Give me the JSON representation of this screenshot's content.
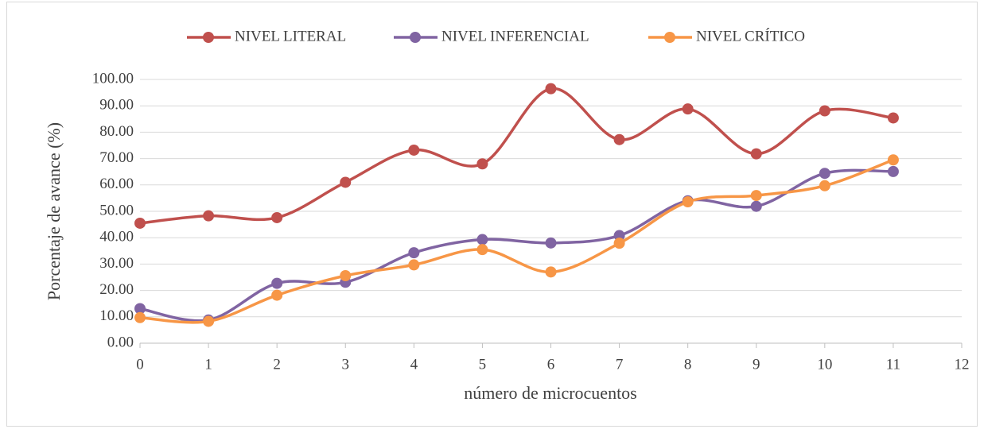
{
  "chart_data": {
    "type": "line",
    "smooth": true,
    "x": [
      0,
      1,
      2,
      3,
      4,
      5,
      6,
      7,
      8,
      9,
      10,
      11
    ],
    "series": [
      {
        "name": "NIVEL LITERAL",
        "color": "#c0504d",
        "values": [
          45.5,
          48.3,
          47.6,
          61.0,
          73.2,
          68.0,
          96.5,
          77.2,
          88.8,
          71.8,
          88.1,
          85.4
        ]
      },
      {
        "name": "NIVEL INFERENCIAL",
        "color": "#8064a2",
        "values": [
          13.1,
          8.8,
          22.7,
          23.1,
          34.3,
          39.3,
          38.0,
          40.8,
          54.0,
          51.9,
          64.4,
          65.1
        ]
      },
      {
        "name": "NIVEL CRÍTICO",
        "color": "#f79646",
        "values": [
          9.7,
          8.3,
          18.2,
          25.6,
          29.7,
          35.5,
          27.0,
          37.9,
          53.6,
          56.0,
          59.7,
          69.5
        ]
      }
    ],
    "xlabel": "número de microcuentos",
    "ylabel": "Porcentaje de avance (%)",
    "xlim": [
      0,
      12
    ],
    "xticks": [
      0,
      1,
      2,
      3,
      4,
      5,
      6,
      7,
      8,
      9,
      10,
      11,
      12
    ],
    "ylim": [
      0,
      100
    ],
    "yticks": [
      {
        "value": 0,
        "label": "0.00"
      },
      {
        "value": 10,
        "label": "10.00"
      },
      {
        "value": 20,
        "label": "20.00"
      },
      {
        "value": 30,
        "label": "30.00"
      },
      {
        "value": 40,
        "label": "40.00"
      },
      {
        "value": 50,
        "label": "50.00"
      },
      {
        "value": 60,
        "label": "60.00"
      },
      {
        "value": 70,
        "label": "70.00"
      },
      {
        "value": 80,
        "label": "80.00"
      },
      {
        "value": 90,
        "label": "90.00"
      },
      {
        "value": 100,
        "label": "100.00"
      }
    ],
    "grid": true,
    "legend": "top"
  }
}
